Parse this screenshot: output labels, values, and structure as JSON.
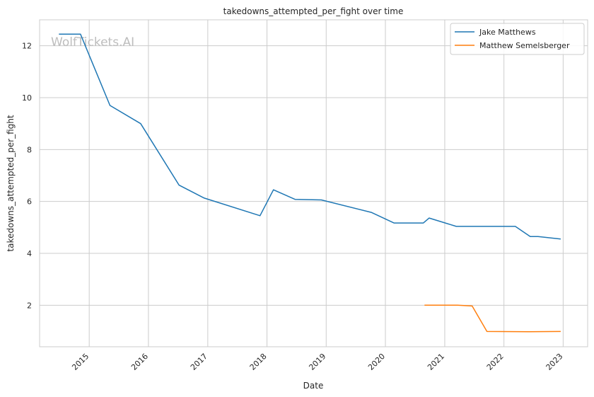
{
  "chart_data": {
    "type": "line",
    "title": "takedowns_attempted_per_fight over time",
    "xlabel": "Date",
    "ylabel": "takedowns_attempted_per_fight",
    "watermark": "WolfTickets.AI",
    "xlim": [
      "2014-03-01",
      "2023-06-01"
    ],
    "ylim": [
      0.4,
      13.0
    ],
    "x_ticks": [
      "2015-01-01",
      "2016-01-01",
      "2017-01-01",
      "2018-01-01",
      "2019-01-01",
      "2020-01-01",
      "2021-01-01",
      "2022-01-01",
      "2023-01-01"
    ],
    "x_tick_labels": [
      "2015",
      "2016",
      "2017",
      "2018",
      "2019",
      "2020",
      "2021",
      "2022",
      "2023"
    ],
    "y_ticks": [
      2,
      4,
      6,
      8,
      10,
      12
    ],
    "y_tick_labels": [
      "2",
      "4",
      "6",
      "8",
      "10",
      "12"
    ],
    "grid": true,
    "legend_position": "top-right",
    "series": [
      {
        "name": "Jake Matthews",
        "color": "#1f77b4",
        "points": [
          [
            "2014-06-28",
            12.45
          ],
          [
            "2014-11-08",
            12.45
          ],
          [
            "2015-05-09",
            9.7
          ],
          [
            "2015-11-14",
            9.0
          ],
          [
            "2016-07-08",
            6.63
          ],
          [
            "2016-12-10",
            6.13
          ],
          [
            "2017-11-19",
            5.45
          ],
          [
            "2018-02-10",
            6.45
          ],
          [
            "2018-06-23",
            6.08
          ],
          [
            "2018-12-02",
            6.06
          ],
          [
            "2019-10-06",
            5.58
          ],
          [
            "2020-02-23",
            5.17
          ],
          [
            "2020-08-22",
            5.17
          ],
          [
            "2020-09-27",
            5.36
          ],
          [
            "2021-03-13",
            5.04
          ],
          [
            "2022-03-12",
            5.04
          ],
          [
            "2022-06-12",
            4.65
          ],
          [
            "2022-07-30",
            4.65
          ],
          [
            "2022-12-17",
            4.55
          ]
        ]
      },
      {
        "name": "Matthew Semelsberger",
        "color": "#ff7f0e",
        "points": [
          [
            "2020-08-29",
            2.0
          ],
          [
            "2021-03-20",
            2.0
          ],
          [
            "2021-06-19",
            1.97
          ],
          [
            "2021-09-18",
            0.99
          ],
          [
            "2022-06-04",
            0.98
          ],
          [
            "2022-12-17",
            0.99
          ]
        ]
      }
    ]
  }
}
